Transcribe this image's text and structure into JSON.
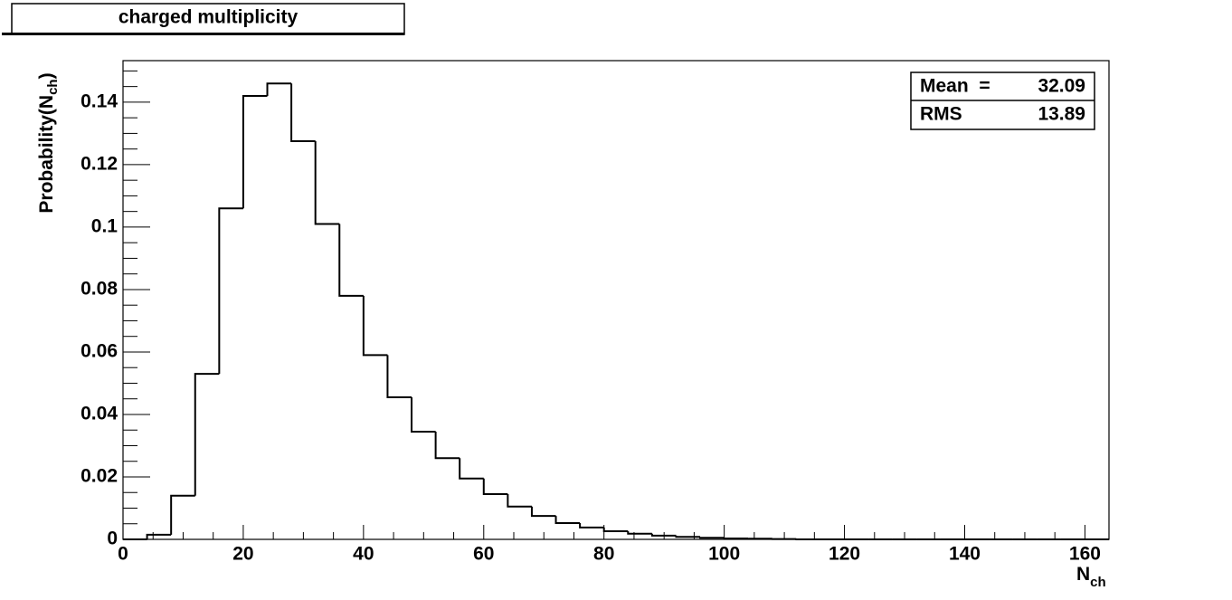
{
  "chart_data": {
    "type": "histogram",
    "title": "charged multiplicity",
    "ylabel_parts": [
      "Probability(N",
      "ch",
      ")"
    ],
    "xlabel_parts": [
      "N",
      "ch"
    ],
    "bins": [
      0,
      4,
      8,
      12,
      16,
      20,
      24,
      28,
      32,
      36,
      40,
      44,
      48,
      52,
      56,
      60,
      64,
      68,
      72,
      76,
      80,
      84,
      88,
      92,
      96,
      100,
      104,
      108,
      112,
      116,
      120,
      124,
      128,
      132,
      136,
      140,
      144,
      148,
      152,
      156,
      160,
      164
    ],
    "values": [
      0,
      0.0015,
      0.014,
      0.053,
      0.106,
      0.142,
      0.146,
      0.1275,
      0.101,
      0.078,
      0.059,
      0.0455,
      0.0345,
      0.026,
      0.0195,
      0.0145,
      0.0105,
      0.0075,
      0.0052,
      0.0038,
      0.0026,
      0.0018,
      0.0012,
      0.0008,
      0.0005,
      0.0003,
      0.0002,
      0.0001,
      0,
      0,
      0,
      0,
      0,
      0,
      0,
      0,
      0,
      0,
      0,
      0,
      0
    ],
    "color": "#000000",
    "xlim": [
      0,
      164
    ],
    "ylim": [
      0,
      0.1533
    ],
    "xticks": [
      0,
      20,
      40,
      60,
      80,
      100,
      120,
      140,
      160
    ],
    "yticks": [
      0,
      0.02,
      0.04,
      0.06,
      0.08,
      0.1,
      0.12,
      0.14
    ],
    "xminorticks": [
      5,
      10,
      15,
      25,
      30,
      35,
      45,
      50,
      55,
      65,
      70,
      75,
      85,
      90,
      95,
      105,
      110,
      115,
      125,
      130,
      135,
      145,
      150,
      155
    ],
    "yminorticks": [
      0.005,
      0.01,
      0.015,
      0.025,
      0.03,
      0.035,
      0.045,
      0.05,
      0.055,
      0.065,
      0.07,
      0.075,
      0.085,
      0.09,
      0.095,
      0.105,
      0.11,
      0.115,
      0.125,
      0.13,
      0.135,
      0.145,
      0.15
    ],
    "stats": [
      {
        "label": "Mean  =",
        "value": 32.09
      },
      {
        "label": "RMS",
        "value": 13.89
      }
    ]
  }
}
